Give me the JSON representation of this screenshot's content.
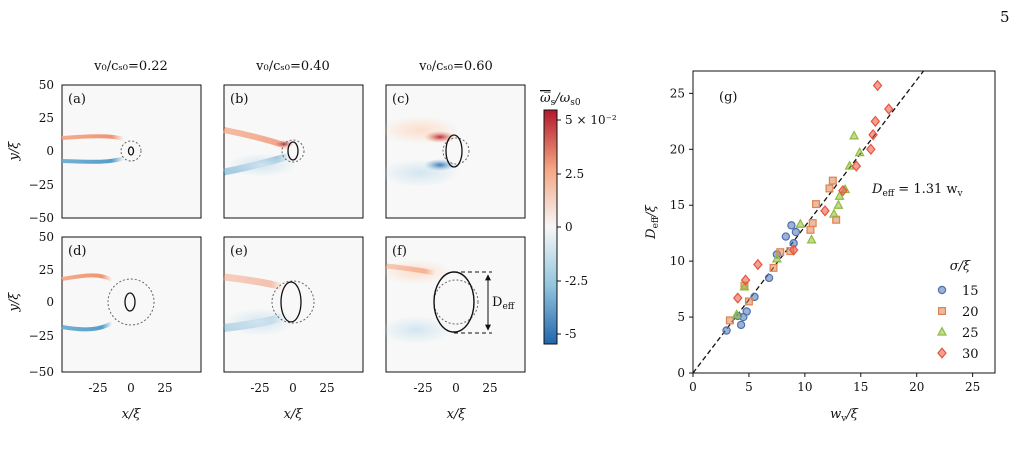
{
  "page_number": "5",
  "figure": {
    "column_titles": [
      "v₀/cₛ₀=0.22",
      "v₀/cₛ₀=0.40",
      "v₀/cₛ₀=0.60"
    ],
    "panel_labels": [
      "(a)",
      "(b)",
      "(c)",
      "(d)",
      "(e)",
      "(f)",
      "(g)"
    ],
    "field_axes": {
      "xlabel": "x/ξ",
      "ylabel": "y/ξ",
      "xticks": [
        "-25",
        "0",
        "25"
      ],
      "yticks": [
        "50",
        "25",
        "0",
        "−25",
        "−50"
      ],
      "deff_label": "D",
      "deff_sub": "eff"
    },
    "colorbar": {
      "label_main": "ω̅",
      "label_sub": "s",
      "label_rest": "/ω",
      "label_sub2": "s0",
      "ticks": [
        "5 × 10⁻²",
        "2.5",
        "0",
        "-2.5",
        "-5"
      ],
      "colors": {
        "max": "#b2182b",
        "mid": "#f7f7f7",
        "min": "#2166ac"
      }
    },
    "scatter_text": {
      "equation_left": "D",
      "equation_sub": "eff",
      "equation_right": " = 1.31 w",
      "equation_sub2": "v",
      "legend_title": "σ/ξ",
      "xlabel": "w",
      "xlabel_sub": "v",
      "xlabel_rest": "/ξ",
      "ylabel": "D",
      "ylabel_sub": "eff",
      "ylabel_rest": "/ξ"
    }
  },
  "chart_data": {
    "type": "scatter",
    "xlabel": "w_v/ξ",
    "ylabel": "D_eff/ξ",
    "xlim": [
      0,
      27
    ],
    "ylim": [
      0,
      27
    ],
    "xticks": [
      0,
      5,
      10,
      15,
      20,
      25
    ],
    "yticks": [
      0,
      5,
      10,
      15,
      20,
      25
    ],
    "fit_line": {
      "label": "D_eff = 1.31 w_v",
      "slope": 1.31
    },
    "legend_title": "σ/ξ",
    "legend_placement": "lower-right",
    "grid": false,
    "series": [
      {
        "name": "15",
        "marker": "circle",
        "color": "#4c72b0",
        "x": [
          3.0,
          4.0,
          4.3,
          4.8,
          5.5,
          6.8,
          7.5,
          8.3,
          8.8,
          9.0,
          9.2,
          4.5
        ],
        "y": [
          3.8,
          5.1,
          4.3,
          5.5,
          6.8,
          8.5,
          10.6,
          12.2,
          13.2,
          11.6,
          12.6,
          5.0
        ]
      },
      {
        "name": "20",
        "marker": "square",
        "color": "#dd8452",
        "x": [
          3.3,
          4.6,
          5.0,
          7.2,
          7.8,
          8.7,
          10.5,
          10.7,
          11.0,
          12.2,
          12.5,
          12.8
        ],
        "y": [
          4.7,
          7.8,
          6.4,
          9.4,
          10.8,
          10.9,
          12.8,
          13.4,
          15.1,
          16.5,
          17.2,
          13.7
        ]
      },
      {
        "name": "25",
        "marker": "triangle",
        "color": "#8fbc3c",
        "x": [
          4.6,
          7.5,
          9.6,
          10.6,
          12.6,
          13.0,
          13.6,
          14.0,
          14.4,
          14.9,
          3.9,
          13.1
        ],
        "y": [
          7.7,
          10.2,
          13.3,
          11.9,
          14.2,
          15.0,
          16.4,
          18.5,
          21.2,
          19.7,
          5.2,
          15.8
        ]
      },
      {
        "name": "30",
        "marker": "diamond",
        "color": "#e8543c",
        "x": [
          4.0,
          4.7,
          5.8,
          9.0,
          11.8,
          13.4,
          14.6,
          15.9,
          16.1,
          16.3,
          16.5,
          17.5
        ],
        "y": [
          6.7,
          8.3,
          9.7,
          11.0,
          14.5,
          16.3,
          18.5,
          20.0,
          21.3,
          22.5,
          25.7,
          23.6
        ]
      }
    ]
  }
}
